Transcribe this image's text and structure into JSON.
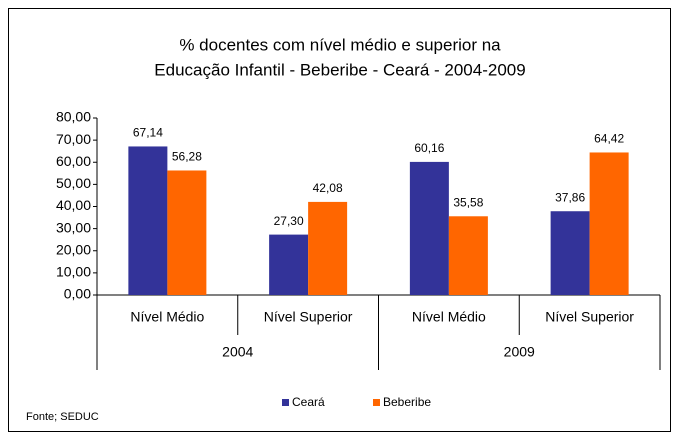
{
  "chart_data": {
    "type": "bar",
    "title": [
      "% docentes com nível médio e superior na",
      "Educação Infantil - Beberibe -  Ceará - 2004-2009"
    ],
    "categories": [
      "Nível Médio",
      "Nível Superior",
      "Nível Médio",
      "Nível Superior"
    ],
    "groups": [
      "2004",
      "2009"
    ],
    "series": [
      {
        "name": "Ceará",
        "color": "#333399",
        "values": [
          67.14,
          27.3,
          60.16,
          37.86
        ],
        "value_labels": [
          "67,14",
          "27,30",
          "60,16",
          "37,86"
        ]
      },
      {
        "name": "Beberibe",
        "color": "#FF6600",
        "values": [
          56.28,
          42.08,
          35.58,
          64.42
        ],
        "value_labels": [
          "56,28",
          "42,08",
          "35,58",
          "64,42"
        ]
      }
    ],
    "ylim": [
      0,
      80
    ],
    "yticks": [
      {
        "value": 0,
        "label": "0,00"
      },
      {
        "value": 10,
        "label": "10,00"
      },
      {
        "value": 20,
        "label": "20,00"
      },
      {
        "value": 30,
        "label": "30,00"
      },
      {
        "value": 40,
        "label": "40,00"
      },
      {
        "value": 50,
        "label": "50,00"
      },
      {
        "value": 60,
        "label": "60,00"
      },
      {
        "value": 70,
        "label": "70,00"
      },
      {
        "value": 80,
        "label": "80,00"
      }
    ],
    "legend": "bottom",
    "note": "Fonte; SEDUC"
  }
}
